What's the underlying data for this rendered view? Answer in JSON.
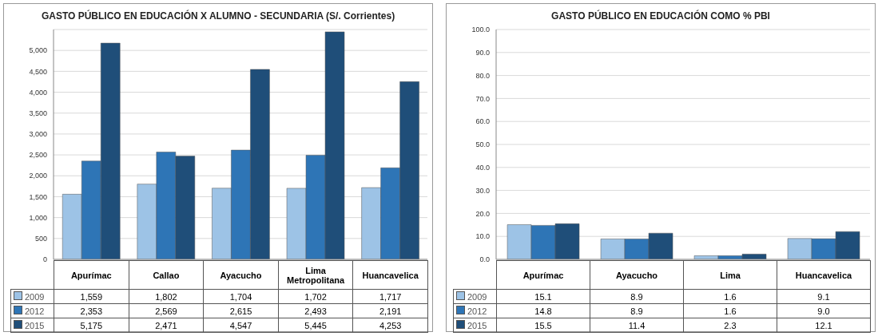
{
  "chart_data": [
    {
      "type": "bar",
      "title": "GASTO PÚBLICO EN EDUCACIÓN X ALUMNO - SECUNDARIA (S/. Corrientes)",
      "categories": [
        "Apurímac",
        "Callao",
        "Ayacucho",
        "Lima Metropolitana",
        "Huancavelica"
      ],
      "series": [
        {
          "name": "2009",
          "color": "#9dc3e6",
          "values": [
            1559,
            1802,
            1704,
            1702,
            1717
          ],
          "value_labels": [
            "1,559",
            "1,802",
            "1,704",
            "1,702",
            "1,717"
          ]
        },
        {
          "name": "2012",
          "color": "#2e75b6",
          "values": [
            2353,
            2569,
            2615,
            2493,
            2191
          ],
          "value_labels": [
            "2,353",
            "2,569",
            "2,615",
            "2,493",
            "2,191"
          ]
        },
        {
          "name": "2015",
          "color": "#1f4e79",
          "values": [
            5175,
            2471,
            4547,
            5445,
            4253
          ],
          "value_labels": [
            "5,175",
            "2,471",
            "4,547",
            "5,445",
            "4,253"
          ]
        }
      ],
      "ylim": [
        0,
        5500
      ],
      "yticks": [
        0,
        500,
        {
          "value": 1000,
          "label": "1,000"
        },
        {
          "value": 1500,
          "label": "1,500"
        },
        {
          "value": 2000,
          "label": "2,000"
        },
        {
          "value": 2500,
          "label": "2,500"
        },
        {
          "value": 3000,
          "label": "3,000"
        },
        {
          "value": 3500,
          "label": "3,500"
        },
        {
          "value": 4000,
          "label": "4,000"
        },
        {
          "value": 4500,
          "label": "4,500"
        },
        {
          "value": 5000,
          "label": "5,000"
        }
      ],
      "grid": "y",
      "legend": "bottom left"
    },
    {
      "type": "bar",
      "title": "GASTO PÚBLICO EN EDUCACIÓN COMO % PBI",
      "categories": [
        "Apurímac",
        "Ayacucho",
        "Lima",
        "Huancavelica"
      ],
      "series": [
        {
          "name": "2009",
          "color": "#9dc3e6",
          "values": [
            15.1,
            8.9,
            1.6,
            9.1
          ],
          "value_labels": [
            "15.1",
            "8.9",
            "1.6",
            "9.1"
          ]
        },
        {
          "name": "2012",
          "color": "#2e75b6",
          "values": [
            14.8,
            8.9,
            1.6,
            9.0
          ],
          "value_labels": [
            "14.8",
            "8.9",
            "1.6",
            "9.0"
          ]
        },
        {
          "name": "2015",
          "color": "#1f4e79",
          "values": [
            15.5,
            11.4,
            2.3,
            12.1
          ],
          "value_labels": [
            "15.5",
            "11.4",
            "2.3",
            "12.1"
          ]
        }
      ],
      "ylim": [
        0,
        100
      ],
      "yticks": [
        {
          "value": 0,
          "label": "0.0"
        },
        {
          "value": 10,
          "label": "10.0"
        },
        {
          "value": 20,
          "label": "20.0"
        },
        {
          "value": 30,
          "label": "30.0"
        },
        {
          "value": 40,
          "label": "40.0"
        },
        {
          "value": 50,
          "label": "50.0"
        },
        {
          "value": 60,
          "label": "60.0"
        },
        {
          "value": 70,
          "label": "70.0"
        },
        {
          "value": 80,
          "label": "80.0"
        },
        {
          "value": 90,
          "label": "90.0"
        },
        {
          "value": 100,
          "label": "100.0"
        }
      ],
      "grid": "y",
      "legend": "bottom left"
    }
  ]
}
